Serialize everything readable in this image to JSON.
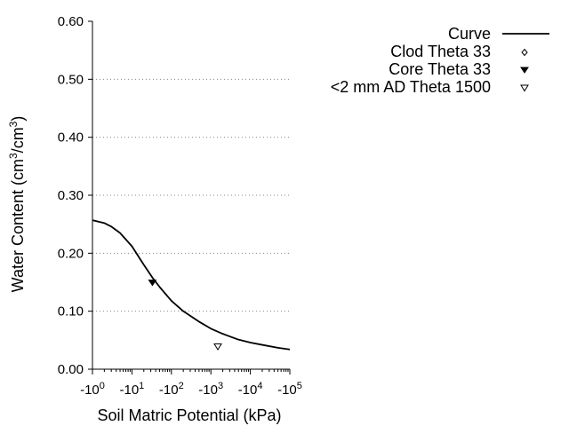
{
  "chart_data": {
    "type": "scatter",
    "title": "",
    "xlabel": "Soil Matric Potential (kPa)",
    "ylabel": "Water Content (cm³/cm³)",
    "ylabel_parts": {
      "pre": "Water Content (cm",
      "sup1": "3",
      "mid": "/cm",
      "sup2": "3",
      "post": ")"
    },
    "x_scale": "log",
    "xlim": [
      1,
      100000
    ],
    "ylim": [
      0,
      0.6
    ],
    "x_ticks": [
      {
        "value": 1,
        "base": "-10",
        "exp": "0"
      },
      {
        "value": 10,
        "base": "-10",
        "exp": "1"
      },
      {
        "value": 100,
        "base": "-10",
        "exp": "2"
      },
      {
        "value": 1000,
        "base": "-10",
        "exp": "3"
      },
      {
        "value": 10000,
        "base": "-10",
        "exp": "4"
      },
      {
        "value": 100000,
        "base": "-10",
        "exp": "5"
      }
    ],
    "y_ticks": [
      {
        "value": 0.0,
        "label": "0.00"
      },
      {
        "value": 0.1,
        "label": "0.10"
      },
      {
        "value": 0.2,
        "label": "0.20"
      },
      {
        "value": 0.3,
        "label": "0.30"
      },
      {
        "value": 0.4,
        "label": "0.40"
      },
      {
        "value": 0.5,
        "label": "0.50"
      },
      {
        "value": 0.6,
        "label": "0.60"
      }
    ],
    "grid": "horizontal dotted",
    "legend_position": "top-right, outside plot",
    "series": [
      {
        "name": "Curve",
        "kind": "line",
        "x": [
          1,
          2,
          3,
          5,
          10,
          20,
          33,
          50,
          100,
          200,
          500,
          1000,
          2000,
          5000,
          10000,
          20000,
          50000,
          100000
        ],
        "y": [
          0.257,
          0.252,
          0.246,
          0.235,
          0.212,
          0.18,
          0.158,
          0.142,
          0.118,
          0.1,
          0.082,
          0.07,
          0.061,
          0.051,
          0.046,
          0.042,
          0.037,
          0.034
        ]
      },
      {
        "name": "Clod Theta 33",
        "kind": "marker",
        "marker": "open-diamond",
        "x": [],
        "y": []
      },
      {
        "name": "Core Theta 33",
        "kind": "marker",
        "marker": "filled-triangle-down",
        "x": [
          33
        ],
        "y": [
          0.149
        ]
      },
      {
        "name": "<2 mm AD Theta 1500",
        "kind": "marker",
        "marker": "open-triangle-down",
        "x": [
          1500
        ],
        "y": [
          0.039
        ]
      }
    ]
  }
}
